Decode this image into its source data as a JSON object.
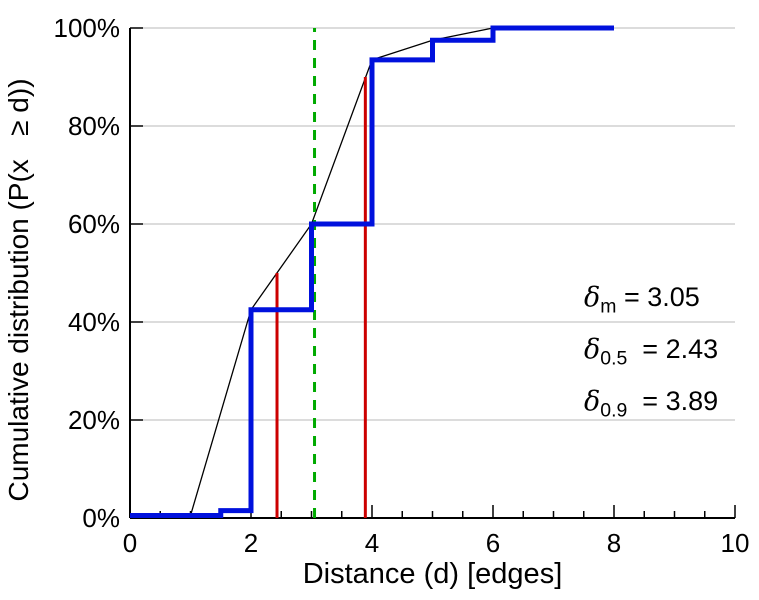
{
  "axes": {
    "xlabel": "Distance (d) [edges]",
    "ylabel": "Cumulative distribution (P(x   ≥ d))"
  },
  "annotations": [
    {
      "symbol": "δ",
      "sub": "m",
      "text": " = 3.05"
    },
    {
      "symbol": "δ",
      "sub": "0.5",
      "text": "  = 2.43"
    },
    {
      "symbol": "δ",
      "sub": "0.9",
      "text": "  = 3.89"
    }
  ],
  "chart_data": {
    "type": "line",
    "title": "",
    "xlabel": "Distance (d) [edges]",
    "ylabel": "Cumulative distribution (P(x ≥ d))",
    "x_range": [
      0,
      10
    ],
    "y_range": [
      0,
      100
    ],
    "x_ticks": [
      {
        "v": 0,
        "label": "0"
      },
      {
        "v": 2,
        "label": "2"
      },
      {
        "v": 4,
        "label": "4"
      },
      {
        "v": 6,
        "label": "6"
      },
      {
        "v": 8,
        "label": "8"
      },
      {
        "v": 10,
        "label": "10"
      }
    ],
    "x_minor_step": 0.5,
    "y_ticks": [
      {
        "v": 0,
        "label": "0%"
      },
      {
        "v": 20,
        "label": "20%"
      },
      {
        "v": 40,
        "label": "40%"
      },
      {
        "v": 60,
        "label": "60%"
      },
      {
        "v": 80,
        "label": "80%"
      },
      {
        "v": 100,
        "label": "100%"
      }
    ],
    "grid": "horizontal-major",
    "legend": "none",
    "colors": {
      "step": "#0011dd",
      "interpolated": "#000000",
      "percentile": "#cc0000",
      "mean": "#00aa00",
      "gridline": "#b8b8b8"
    },
    "stats": {
      "delta_m": 3.05,
      "delta_05": 2.43,
      "delta_09": 3.89
    },
    "series": [
      {
        "name": "interpolated-cdf",
        "color": "#000000",
        "width": 1.3,
        "dash": null,
        "points": [
          [
            1,
            0.5
          ],
          [
            2,
            42.5
          ],
          [
            3,
            60
          ],
          [
            4,
            93.5
          ],
          [
            5,
            97.5
          ],
          [
            6,
            100
          ]
        ]
      },
      {
        "name": "median-marker-d05",
        "color": "#cc0000",
        "width": 3,
        "dash": null,
        "points": [
          [
            2.43,
            0
          ],
          [
            2.43,
            50
          ]
        ]
      },
      {
        "name": "p90-marker-d09",
        "color": "#cc0000",
        "width": 3,
        "dash": null,
        "points": [
          [
            3.89,
            0
          ],
          [
            3.89,
            90
          ]
        ]
      },
      {
        "name": "mean-marker-dm",
        "color": "#00aa00",
        "width": 3,
        "dash": "10,8",
        "points": [
          [
            3.05,
            0
          ],
          [
            3.05,
            100
          ]
        ]
      },
      {
        "name": "empirical-cdf-step",
        "color": "#0011dd",
        "width": 5,
        "dash": null,
        "points": [
          [
            0,
            0.5
          ],
          [
            1.5,
            0.5
          ],
          [
            1.5,
            1.5
          ],
          [
            2,
            1.5
          ],
          [
            2,
            42.5
          ],
          [
            3,
            42.5
          ],
          [
            3,
            60
          ],
          [
            4,
            60
          ],
          [
            4,
            93.5
          ],
          [
            5,
            93.5
          ],
          [
            5,
            97.5
          ],
          [
            6,
            97.5
          ],
          [
            6,
            100
          ],
          [
            8,
            100
          ]
        ]
      }
    ]
  }
}
